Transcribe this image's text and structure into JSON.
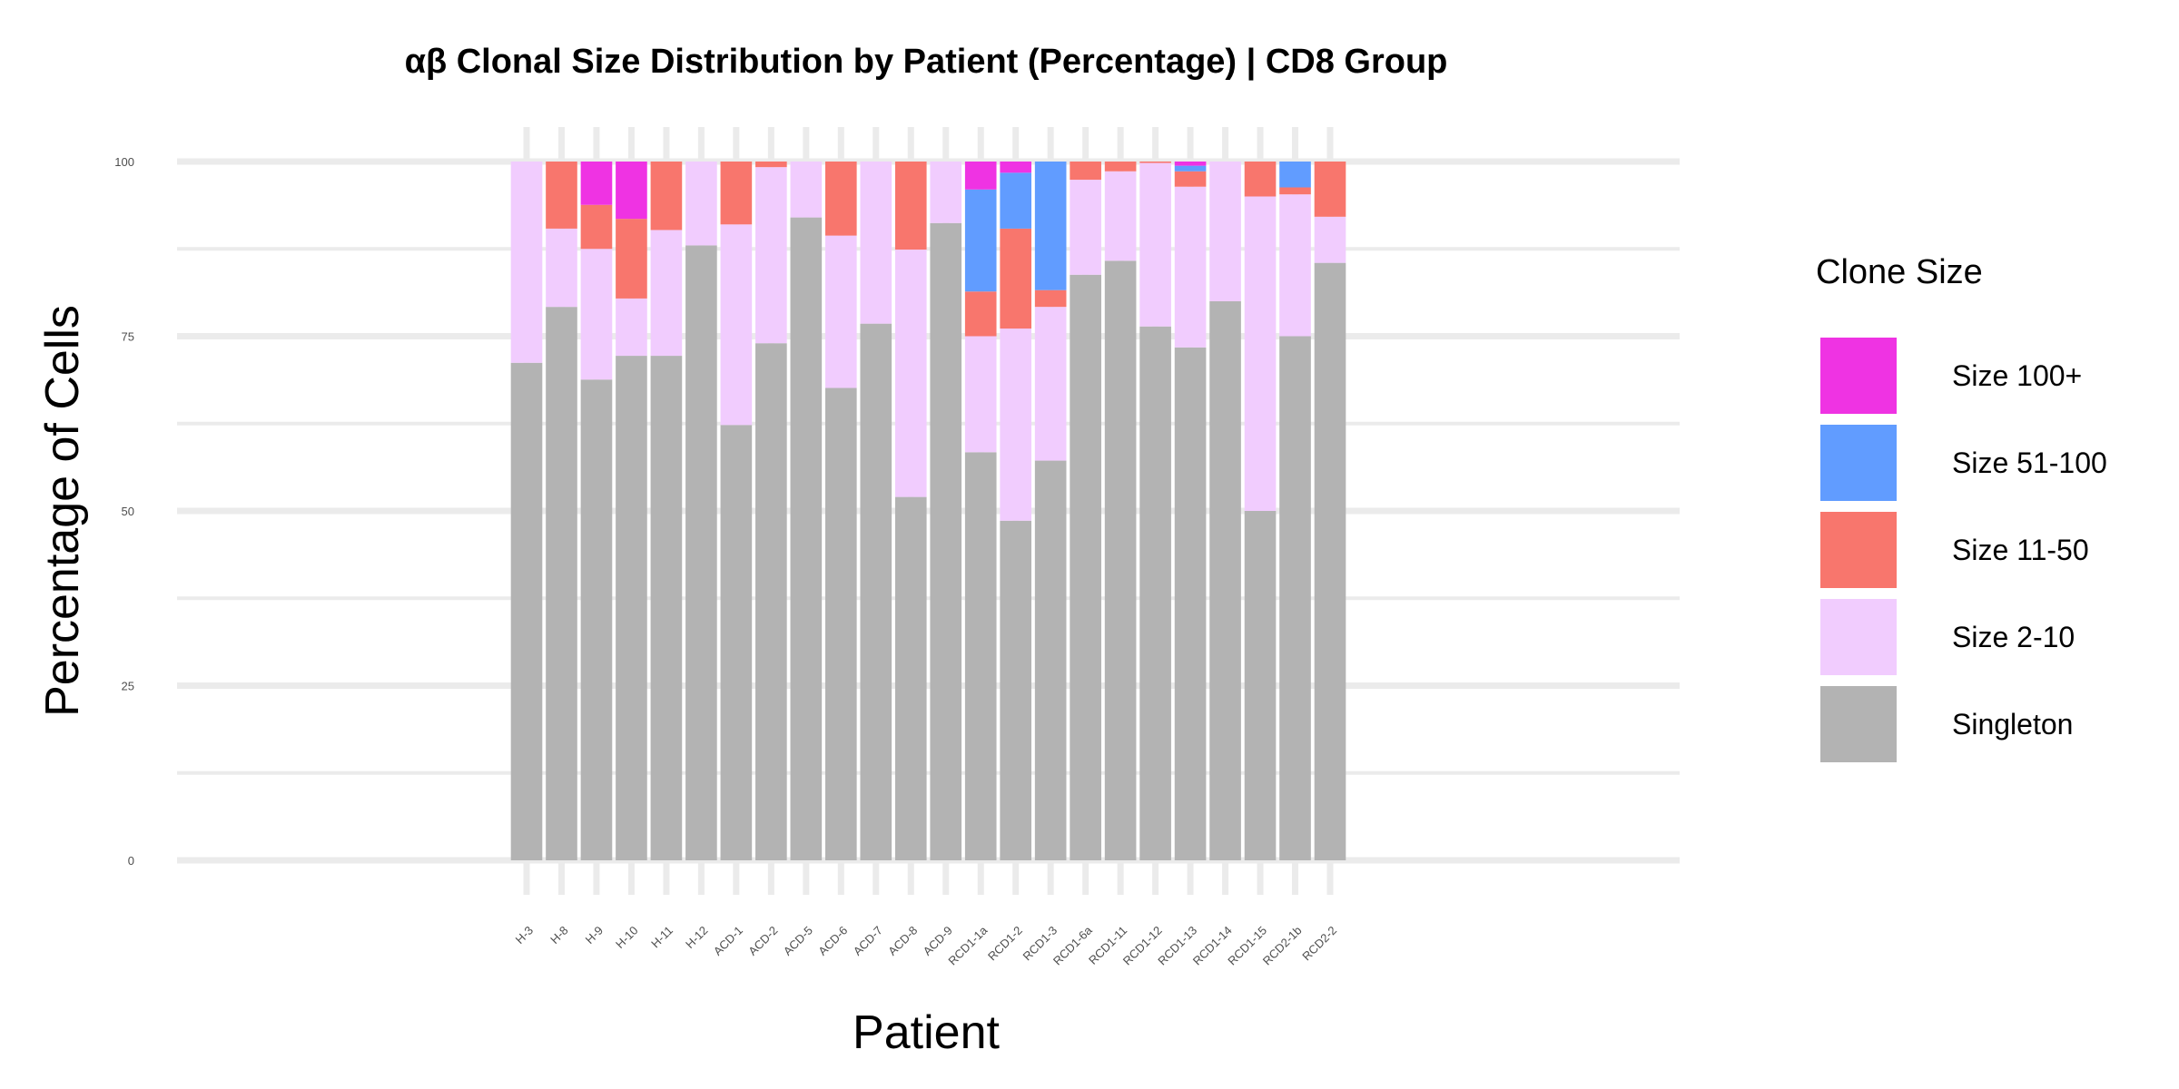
{
  "chart_data": {
    "type": "bar",
    "stacked": true,
    "title": "αβ Clonal Size Distribution by Patient (Percentage) | CD8 Group",
    "xlabel": "Patient",
    "ylabel": "Percentage of Cells",
    "ylim": [
      0,
      100
    ],
    "yticks": [
      0,
      25,
      50,
      75,
      100
    ],
    "grid": true,
    "legend_title": "Clone Size",
    "legend_position": "right",
    "categories": [
      "H-3",
      "H-8",
      "H-9",
      "H-10",
      "H-11",
      "H-12",
      "ACD-1",
      "ACD-2",
      "ACD-5",
      "ACD-6",
      "ACD-7",
      "ACD-8",
      "ACD-9",
      "RCD1-1a",
      "RCD1-2",
      "RCD1-3",
      "RCD1-6a",
      "RCD1-11",
      "RCD1-12",
      "RCD1-13",
      "RCD1-14",
      "RCD1-15",
      "RCD2-1b",
      "RCD2-2"
    ],
    "series": [
      {
        "name": "Singleton",
        "color": "#B3B3B3",
        "values": [
          71.2,
          79.2,
          68.8,
          72.2,
          72.2,
          88.0,
          62.3,
          74.0,
          92.0,
          67.6,
          76.8,
          52.0,
          91.2,
          58.4,
          48.6,
          57.2,
          83.8,
          85.8,
          76.4,
          73.4,
          80.0,
          50.0,
          75.0,
          85.5
        ]
      },
      {
        "name": "Size 2-10",
        "color": "#F1CCFE",
        "values": [
          28.8,
          11.2,
          18.7,
          8.2,
          18.0,
          12.0,
          28.7,
          25.2,
          8.0,
          21.8,
          23.2,
          35.4,
          8.8,
          16.6,
          27.5,
          22.0,
          13.6,
          12.8,
          23.4,
          23.0,
          20.0,
          45.0,
          20.3,
          6.6
        ]
      },
      {
        "name": "Size 11-50",
        "color": "#F8766D",
        "values": [
          0,
          9.6,
          6.3,
          11.4,
          9.8,
          0,
          9.0,
          0.8,
          0,
          10.6,
          0,
          12.6,
          0,
          6.4,
          14.3,
          2.4,
          2.6,
          1.4,
          0.2,
          2.2,
          0,
          5.0,
          1.0,
          7.9
        ]
      },
      {
        "name": "Size 51-100",
        "color": "#619CFF",
        "values": [
          0,
          0,
          0,
          0,
          0,
          0,
          0,
          0,
          0,
          0,
          0,
          0,
          0,
          14.6,
          8.0,
          18.4,
          0,
          0,
          0,
          0.8,
          0,
          0,
          3.7,
          0
        ]
      },
      {
        "name": "Size 100+",
        "color": "#EF33E3",
        "values": [
          0,
          0,
          6.2,
          8.2,
          0,
          0,
          0,
          0,
          0,
          0,
          0,
          0,
          0,
          4.0,
          1.6,
          0,
          0,
          0,
          0,
          0.6,
          0,
          0,
          0,
          0
        ]
      }
    ],
    "legend_order": [
      "Size 100+",
      "Size 51-100",
      "Size 11-50",
      "Size 2-10",
      "Singleton"
    ]
  }
}
